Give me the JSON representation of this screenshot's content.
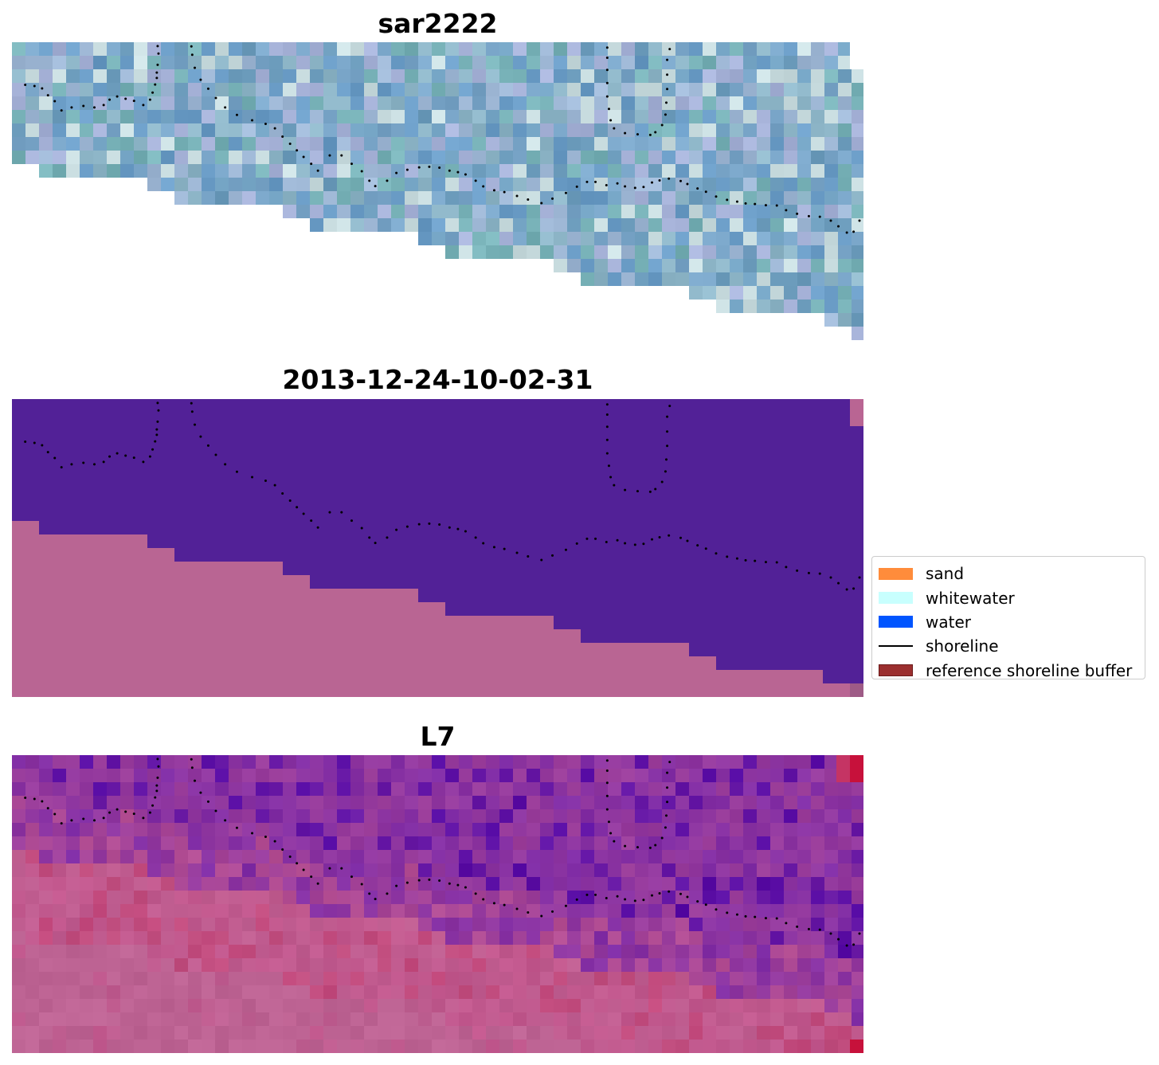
{
  "chart_data": [
    {
      "type": "heatmap",
      "title": "sar2222",
      "description_colors": {
        "blue": "#6a9cc6",
        "teal": "#78b2b8",
        "lavender": "#a6b2d8",
        "pale": "#c9dde0"
      },
      "axes": "off"
    },
    {
      "type": "heatmap",
      "title": "2013-12-24-10-02-31",
      "classes": {
        "water": "#522197",
        "land": "#b96593"
      },
      "axes": "off"
    },
    {
      "type": "heatmap",
      "title": "L7",
      "colors": {
        "purple": "#7f2ca6",
        "deep": "#560aa4",
        "pink": "#c2578d",
        "land": "#bd6393",
        "red": "#c7113b"
      },
      "axes": "off"
    }
  ],
  "legend": {
    "placement": "right-center",
    "items": [
      {
        "label": "sand",
        "color": "#ff8c3b",
        "kind": "patch"
      },
      {
        "label": "whitewater",
        "color": "#c8fffe",
        "kind": "patch"
      },
      {
        "label": "water",
        "color": "#0055ff",
        "kind": "patch"
      },
      {
        "label": "shoreline",
        "color": "#000000",
        "kind": "line"
      },
      {
        "label": "reference shoreline buffer",
        "color": "#9b2f2f",
        "kind": "patch",
        "edge": "#6b1a1a"
      }
    ]
  },
  "shoreline_points": [
    [
      0.011,
      0.143
    ],
    [
      0.022,
      0.147
    ],
    [
      0.031,
      0.155
    ],
    [
      0.038,
      0.178
    ],
    [
      0.046,
      0.198
    ],
    [
      0.054,
      0.229
    ],
    [
      0.066,
      0.219
    ],
    [
      0.08,
      0.214
    ],
    [
      0.093,
      0.219
    ],
    [
      0.104,
      0.211
    ],
    [
      0.111,
      0.193
    ],
    [
      0.12,
      0.182
    ],
    [
      0.13,
      0.19
    ],
    [
      0.14,
      0.197
    ],
    [
      0.151,
      0.211
    ],
    [
      0.159,
      0.193
    ],
    [
      0.162,
      0.169
    ],
    [
      0.165,
      0.142
    ],
    [
      0.167,
      0.12
    ],
    [
      0.167,
      0.102
    ],
    [
      0.168,
      0.076
    ],
    [
      0.169,
      0.038
    ],
    [
      0.168,
      0.013
    ],
    [
      0.208,
      0.014
    ],
    [
      0.209,
      0.042
    ],
    [
      0.212,
      0.086
    ],
    [
      0.219,
      0.126
    ],
    [
      0.228,
      0.156
    ],
    [
      0.237,
      0.187
    ],
    [
      0.248,
      0.219
    ],
    [
      0.262,
      0.244
    ],
    [
      0.28,
      0.262
    ],
    [
      0.296,
      0.274
    ],
    [
      0.307,
      0.289
    ],
    [
      0.316,
      0.317
    ],
    [
      0.325,
      0.341
    ],
    [
      0.333,
      0.363
    ],
    [
      0.341,
      0.385
    ],
    [
      0.35,
      0.408
    ],
    [
      0.358,
      0.431
    ],
    [
      0.372,
      0.38
    ],
    [
      0.386,
      0.38
    ],
    [
      0.398,
      0.408
    ],
    [
      0.41,
      0.433
    ],
    [
      0.419,
      0.465
    ],
    [
      0.426,
      0.483
    ],
    [
      0.44,
      0.465
    ],
    [
      0.451,
      0.439
    ],
    [
      0.464,
      0.428
    ],
    [
      0.478,
      0.42
    ],
    [
      0.49,
      0.418
    ],
    [
      0.502,
      0.421
    ],
    [
      0.514,
      0.431
    ],
    [
      0.524,
      0.436
    ],
    [
      0.533,
      0.444
    ],
    [
      0.545,
      0.465
    ],
    [
      0.554,
      0.484
    ],
    [
      0.567,
      0.497
    ],
    [
      0.579,
      0.503
    ],
    [
      0.594,
      0.516
    ],
    [
      0.607,
      0.528
    ],
    [
      0.623,
      0.54
    ],
    [
      0.636,
      0.525
    ],
    [
      0.652,
      0.506
    ],
    [
      0.665,
      0.485
    ],
    [
      0.677,
      0.469
    ],
    [
      0.687,
      0.469
    ],
    [
      0.7,
      0.48
    ],
    [
      0.713,
      0.474
    ],
    [
      0.722,
      0.484
    ],
    [
      0.734,
      0.489
    ],
    [
      0.744,
      0.486
    ],
    [
      0.754,
      0.471
    ],
    [
      0.763,
      0.464
    ],
    [
      0.774,
      0.458
    ],
    [
      0.788,
      0.466
    ],
    [
      0.796,
      0.476
    ],
    [
      0.808,
      0.491
    ],
    [
      0.818,
      0.502
    ],
    [
      0.83,
      0.518
    ],
    [
      0.843,
      0.529
    ],
    [
      0.855,
      0.535
    ],
    [
      0.865,
      0.541
    ],
    [
      0.876,
      0.543
    ],
    [
      0.889,
      0.547
    ],
    [
      0.902,
      0.548
    ],
    [
      0.913,
      0.564
    ],
    [
      0.926,
      0.576
    ],
    [
      0.94,
      0.584
    ],
    [
      0.953,
      0.586
    ],
    [
      0.966,
      0.599
    ],
    [
      0.975,
      0.618
    ],
    [
      0.985,
      0.639
    ],
    [
      0.993,
      0.636
    ],
    [
      1.0,
      0.599
    ],
    [
      0.701,
      0.018
    ],
    [
      0.701,
      0.052
    ],
    [
      0.701,
      0.093
    ],
    [
      0.701,
      0.137
    ],
    [
      0.701,
      0.182
    ],
    [
      0.703,
      0.224
    ],
    [
      0.705,
      0.262
    ],
    [
      0.709,
      0.289
    ],
    [
      0.722,
      0.305
    ],
    [
      0.737,
      0.309
    ],
    [
      0.752,
      0.311
    ],
    [
      0.758,
      0.302
    ],
    [
      0.766,
      0.278
    ],
    [
      0.77,
      0.243
    ],
    [
      0.771,
      0.203
    ],
    [
      0.772,
      0.157
    ],
    [
      0.772,
      0.109
    ],
    [
      0.772,
      0.059
    ],
    [
      0.775,
      0.023
    ]
  ]
}
